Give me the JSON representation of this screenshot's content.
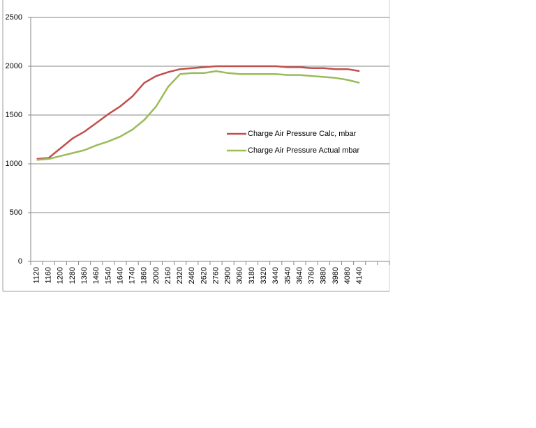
{
  "chart_data": {
    "type": "line",
    "categories": [
      "1120",
      "1160",
      "1200",
      "1280",
      "1360",
      "1460",
      "1540",
      "1640",
      "1740",
      "1860",
      "2000",
      "2160",
      "2320",
      "2460",
      "2620",
      "2760",
      "2900",
      "3060",
      "3180",
      "3320",
      "3440",
      "3540",
      "3640",
      "3760",
      "3880",
      "3980",
      "4080",
      "4140",
      null,
      null
    ],
    "series": [
      {
        "name": "Charge Air Pressure Calc,  mbar",
        "color": "#c0504d",
        "values": [
          1050,
          1060,
          1160,
          1260,
          1330,
          1420,
          1510,
          1590,
          1690,
          1830,
          1900,
          1940,
          1970,
          1980,
          1990,
          2000,
          2000,
          2000,
          2000,
          2000,
          2000,
          1990,
          1990,
          1980,
          1980,
          1970,
          1970,
          1950,
          null,
          null
        ]
      },
      {
        "name": "Charge Air Pressure Actual  mbar",
        "color": "#9bbb59",
        "values": [
          1040,
          1050,
          1080,
          1110,
          1140,
          1190,
          1230,
          1280,
          1350,
          1450,
          1590,
          1790,
          1920,
          1930,
          1930,
          1950,
          1930,
          1920,
          1920,
          1920,
          1920,
          1910,
          1910,
          1900,
          1890,
          1880,
          1860,
          1830,
          null,
          null
        ]
      }
    ],
    "ylim": [
      0,
      2500
    ],
    "yticks": [
      0,
      500,
      1000,
      1500,
      2000,
      2500
    ],
    "grid": true,
    "legend": "right"
  }
}
